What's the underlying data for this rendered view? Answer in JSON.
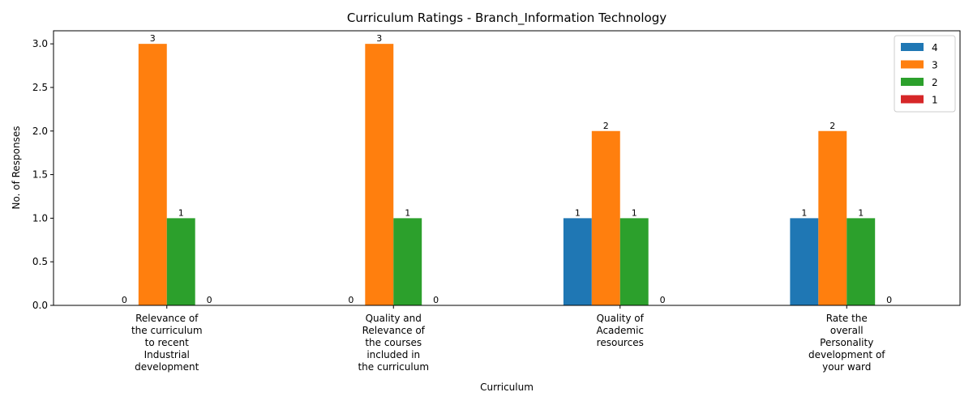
{
  "chart_data": {
    "type": "bar",
    "title": "Curriculum Ratings - Branch_Information Technology",
    "xlabel": "Curriculum",
    "ylabel": "No. of Responses",
    "ylim": [
      0,
      3.15
    ],
    "yticks": [
      "0.0",
      "0.5",
      "1.0",
      "1.5",
      "2.0",
      "2.5",
      "3.0"
    ],
    "categories": [
      [
        "Relevance of",
        "the curriculum",
        "to recent",
        "Industrial",
        "development"
      ],
      [
        "Quality and",
        "Relevance of",
        "the courses",
        "included in",
        "the curriculum"
      ],
      [
        "Quality of",
        "Academic",
        "resources"
      ],
      [
        "Rate the",
        "overall",
        "Personality",
        "development of",
        "your ward"
      ]
    ],
    "series": [
      {
        "name": "4",
        "color": "#1f77b4",
        "values": [
          0,
          0,
          1,
          1
        ]
      },
      {
        "name": "3",
        "color": "#ff7f0e",
        "values": [
          3,
          3,
          2,
          2
        ]
      },
      {
        "name": "2",
        "color": "#2ca02c",
        "values": [
          1,
          1,
          1,
          1
        ]
      },
      {
        "name": "1",
        "color": "#d62728",
        "values": [
          0,
          0,
          0,
          0
        ]
      }
    ],
    "legend": "top-right",
    "grid": false
  }
}
